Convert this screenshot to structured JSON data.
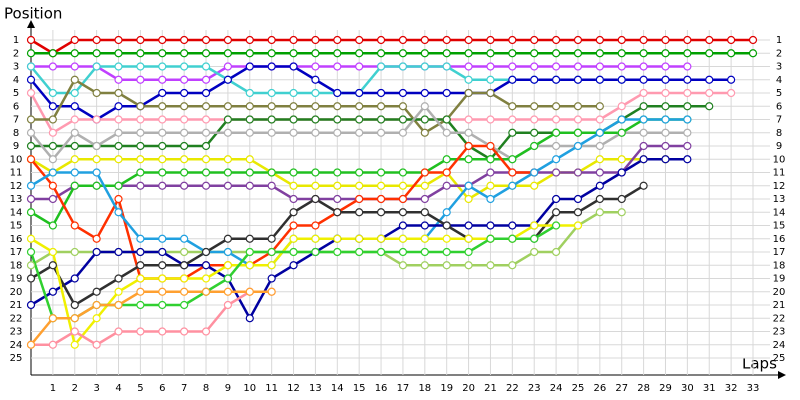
{
  "chart_data": {
    "type": "line",
    "y_label": "Position",
    "x_label": "Laps",
    "x": [
      0,
      1,
      2,
      3,
      4,
      5,
      6,
      7,
      8,
      9,
      10,
      11,
      12,
      13,
      14,
      15,
      16,
      17,
      18,
      19,
      20,
      21,
      22,
      23,
      24,
      25,
      26,
      27,
      28,
      29,
      30,
      31,
      32,
      33
    ],
    "xlim": [
      0,
      33
    ],
    "ylim": [
      1,
      25
    ],
    "y_inverted": true,
    "grid": true,
    "xticks": [
      1,
      2,
      3,
      4,
      5,
      6,
      7,
      8,
      9,
      10,
      11,
      12,
      13,
      14,
      15,
      16,
      17,
      18,
      19,
      20,
      21,
      22,
      23,
      24,
      25,
      26,
      27,
      28,
      29,
      30,
      31,
      32,
      33
    ],
    "yticks": [
      1,
      2,
      3,
      4,
      5,
      6,
      7,
      8,
      9,
      10,
      11,
      12,
      13,
      14,
      15,
      16,
      17,
      18,
      19,
      20,
      21,
      22,
      23,
      24,
      25
    ],
    "series": [
      {
        "color": "#e00000",
        "values": [
          1,
          2,
          1,
          1,
          1,
          1,
          1,
          1,
          1,
          1,
          1,
          1,
          1,
          1,
          1,
          1,
          1,
          1,
          1,
          1,
          1,
          1,
          1,
          1,
          1,
          1,
          1,
          1,
          1,
          1,
          1,
          1,
          1,
          1
        ]
      },
      {
        "color": "#00a000",
        "values": [
          2,
          2,
          2,
          2,
          2,
          2,
          2,
          2,
          2,
          2,
          2,
          2,
          2,
          2,
          2,
          2,
          2,
          2,
          2,
          2,
          2,
          2,
          2,
          2,
          2,
          2,
          2,
          2,
          2,
          2,
          2,
          2,
          2,
          2
        ]
      },
      {
        "color": "#c040ff",
        "values": [
          3,
          3,
          3,
          3,
          4,
          4,
          4,
          4,
          4,
          3,
          3,
          3,
          3,
          3,
          3,
          3,
          3,
          3,
          3,
          3,
          3,
          3,
          3,
          3,
          3,
          3,
          3,
          3,
          3,
          3,
          3,
          null,
          null,
          null
        ]
      },
      {
        "color": "#40d0d0",
        "values": [
          3,
          5,
          5,
          3,
          3,
          3,
          3,
          3,
          3,
          4,
          5,
          5,
          5,
          5,
          5,
          5,
          3,
          3,
          3,
          3,
          4,
          4,
          4,
          4,
          4,
          4,
          4,
          4,
          null,
          null,
          null,
          null,
          null,
          null
        ]
      },
      {
        "color": "#0000c0",
        "values": [
          4,
          6,
          6,
          7,
          6,
          6,
          5,
          5,
          5,
          4,
          3,
          3,
          3,
          4,
          5,
          5,
          5,
          5,
          5,
          5,
          5,
          5,
          4,
          4,
          4,
          4,
          4,
          4,
          4,
          4,
          4,
          4,
          4,
          null
        ]
      },
      {
        "color": "#ff9ab0",
        "values": [
          5,
          8,
          7,
          7,
          7,
          7,
          7,
          7,
          7,
          7,
          7,
          7,
          7,
          7,
          7,
          7,
          7,
          7,
          7,
          7,
          7,
          7,
          7,
          7,
          7,
          7,
          7,
          6,
          5,
          5,
          5,
          5,
          5,
          null
        ]
      },
      {
        "color": "#808040",
        "values": [
          7,
          7,
          4,
          5,
          5,
          6,
          6,
          6,
          6,
          6,
          6,
          6,
          6,
          6,
          6,
          6,
          6,
          6,
          8,
          7,
          5,
          5,
          6,
          6,
          6,
          6,
          6,
          null,
          null,
          null,
          null,
          null,
          null,
          null
        ]
      },
      {
        "color": "#208020",
        "values": [
          9,
          9,
          9,
          9,
          9,
          9,
          9,
          9,
          9,
          7,
          7,
          7,
          7,
          7,
          7,
          7,
          7,
          7,
          7,
          7,
          9,
          10,
          8,
          8,
          8,
          8,
          8,
          7,
          6,
          6,
          6,
          6,
          null,
          null
        ]
      },
      {
        "color": "#b0b0b0",
        "values": [
          8,
          10,
          8,
          9,
          8,
          8,
          8,
          8,
          8,
          8,
          8,
          8,
          8,
          8,
          8,
          8,
          8,
          8,
          6,
          8,
          8,
          9,
          10,
          9,
          9,
          9,
          9,
          8,
          8,
          8,
          8,
          null,
          null,
          null
        ]
      },
      {
        "color": "#e8e800",
        "values": [
          10,
          11,
          10,
          10,
          10,
          10,
          10,
          10,
          10,
          10,
          10,
          11,
          12,
          12,
          12,
          12,
          12,
          12,
          12,
          11,
          13,
          12,
          12,
          12,
          11,
          11,
          10,
          10,
          10,
          10,
          null,
          null,
          null,
          null
        ]
      },
      {
        "color": "#8040a0",
        "values": [
          13,
          13,
          12,
          12,
          12,
          12,
          12,
          12,
          12,
          12,
          12,
          12,
          13,
          13,
          13,
          13,
          13,
          13,
          13,
          12,
          12,
          11,
          11,
          11,
          11,
          11,
          11,
          11,
          9,
          9,
          9,
          null,
          null,
          null
        ]
      },
      {
        "color": "#a0d060",
        "values": [
          18,
          17,
          17,
          17,
          17,
          17,
          17,
          17,
          17,
          17,
          17,
          17,
          17,
          17,
          17,
          17,
          17,
          18,
          18,
          18,
          18,
          18,
          18,
          17,
          17,
          15,
          14,
          14,
          null,
          null,
          null,
          null,
          null,
          null
        ]
      },
      {
        "color": "#20c020",
        "values": [
          14,
          15,
          12,
          12,
          12,
          11,
          11,
          11,
          11,
          11,
          11,
          11,
          11,
          11,
          11,
          11,
          11,
          11,
          11,
          10,
          10,
          10,
          10,
          9,
          8,
          8,
          8,
          8,
          7,
          7,
          7,
          null,
          null,
          null
        ]
      },
      {
        "color": "#ff3000",
        "values": [
          10,
          12,
          15,
          16,
          13,
          19,
          19,
          19,
          18,
          18,
          18,
          17,
          15,
          15,
          14,
          13,
          13,
          13,
          11,
          11,
          9,
          9,
          11,
          11,
          null,
          null,
          null,
          null,
          null,
          null,
          null,
          null,
          null,
          null
        ]
      },
      {
        "color": "#20a0e0",
        "values": [
          12,
          11,
          11,
          11,
          14,
          16,
          16,
          16,
          17,
          17,
          18,
          18,
          16,
          16,
          16,
          16,
          16,
          16,
          16,
          14,
          12,
          13,
          12,
          11,
          10,
          9,
          8,
          7,
          7,
          7,
          7,
          null,
          null,
          null
        ]
      },
      {
        "color": "#0000a0",
        "values": [
          21,
          20,
          19,
          17,
          17,
          17,
          17,
          18,
          18,
          19,
          22,
          19,
          18,
          17,
          16,
          16,
          16,
          15,
          15,
          15,
          15,
          15,
          15,
          15,
          13,
          13,
          12,
          11,
          10,
          10,
          10,
          null,
          null,
          null
        ]
      },
      {
        "color": "#303030",
        "values": [
          19,
          18,
          21,
          20,
          19,
          18,
          18,
          18,
          17,
          16,
          16,
          16,
          14,
          13,
          14,
          14,
          14,
          14,
          14,
          15,
          16,
          16,
          16,
          16,
          14,
          14,
          13,
          13,
          12,
          null,
          null,
          null,
          null,
          null
        ]
      },
      {
        "color": "#f0f000",
        "values": [
          16,
          17,
          24,
          22,
          20,
          19,
          19,
          19,
          19,
          18,
          18,
          18,
          16,
          16,
          16,
          16,
          16,
          16,
          16,
          16,
          16,
          16,
          16,
          15,
          15,
          15,
          null,
          null,
          null,
          null,
          null,
          null,
          null,
          null
        ]
      },
      {
        "color": "#30d030",
        "values": [
          17,
          22,
          22,
          21,
          21,
          21,
          21,
          21,
          20,
          19,
          17,
          17,
          17,
          17,
          17,
          17,
          17,
          17,
          17,
          17,
          17,
          16,
          16,
          16,
          15,
          null,
          null,
          null,
          null,
          null,
          null,
          null,
          null,
          null
        ]
      },
      {
        "color": "#ff90a0",
        "values": [
          24,
          24,
          23,
          24,
          23,
          23,
          23,
          23,
          23,
          21,
          20,
          20,
          null,
          null,
          null,
          null,
          null,
          null,
          null,
          null,
          null,
          null,
          null,
          null,
          null,
          null,
          null,
          null,
          null,
          null,
          null,
          null,
          null,
          null
        ]
      },
      {
        "color": "#ffa030",
        "values": [
          24,
          22,
          22,
          21,
          21,
          20,
          20,
          20,
          20,
          20,
          20,
          20,
          null,
          null,
          null,
          null,
          null,
          null,
          null,
          null,
          null,
          null,
          null,
          null,
          null,
          null,
          null,
          null,
          null,
          null,
          null,
          null,
          null,
          null
        ]
      }
    ]
  }
}
